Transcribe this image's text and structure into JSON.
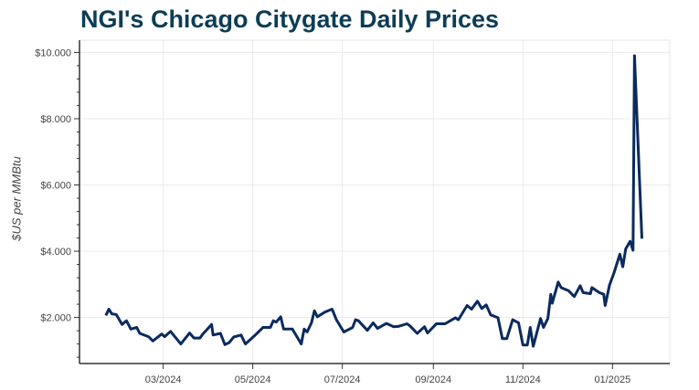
{
  "chart_data": {
    "type": "line",
    "title": "NGI's Chicago Citygate Daily Prices",
    "xlabel": "",
    "ylabel": "$US per MMBtu",
    "ylim": [
      0.61,
      10.37
    ],
    "xlim": [
      "2024-01-04",
      "2025-02-09"
    ],
    "grid": true,
    "line_color": "#0b2a5e",
    "title_color": "#0d3d56",
    "y_ticks": [
      {
        "value": 2,
        "label": "$2.000"
      },
      {
        "value": 4,
        "label": "$4.000"
      },
      {
        "value": 6,
        "label": "$6.000"
      },
      {
        "value": 8,
        "label": "$8.000"
      },
      {
        "value": 10,
        "label": "$10.000"
      }
    ],
    "x_ticks": [
      {
        "value": "2024-03-01",
        "label": "03/2024"
      },
      {
        "value": "2024-05-01",
        "label": "05/2024"
      },
      {
        "value": "2024-07-01",
        "label": "07/2024"
      },
      {
        "value": "2024-09-01",
        "label": "09/2024"
      },
      {
        "value": "2024-11-01",
        "label": "11/2024"
      },
      {
        "value": "2025-01-01",
        "label": "01/2025"
      }
    ],
    "series": [
      {
        "x": [
          "2024-01-22",
          "2024-01-24",
          "2024-01-26",
          "2024-01-29",
          "2024-02-02",
          "2024-02-05",
          "2024-02-08",
          "2024-02-12",
          "2024-02-14",
          "2024-02-20",
          "2024-02-23",
          "2024-02-29",
          "2024-03-02",
          "2024-03-06",
          "2024-03-13",
          "2024-03-19",
          "2024-03-22",
          "2024-03-26",
          "2024-03-28",
          "2024-04-03",
          "2024-04-04",
          "2024-04-09",
          "2024-04-12",
          "2024-04-15",
          "2024-04-18",
          "2024-04-23",
          "2024-04-26",
          "2024-05-02",
          "2024-05-08",
          "2024-05-13",
          "2024-05-15",
          "2024-05-17",
          "2024-05-20",
          "2024-05-22",
          "2024-05-28",
          "2024-06-03",
          "2024-06-05",
          "2024-06-07",
          "2024-06-10",
          "2024-06-12",
          "2024-06-14",
          "2024-06-19",
          "2024-06-24",
          "2024-06-27",
          "2024-07-02",
          "2024-07-08",
          "2024-07-10",
          "2024-07-12",
          "2024-07-18",
          "2024-07-22",
          "2024-07-25",
          "2024-07-31",
          "2024-08-05",
          "2024-08-08",
          "2024-08-14",
          "2024-08-16",
          "2024-08-21",
          "2024-08-26",
          "2024-08-28",
          "2024-09-03",
          "2024-09-09",
          "2024-09-16",
          "2024-09-18",
          "2024-09-24",
          "2024-09-27",
          "2024-10-01",
          "2024-10-04",
          "2024-10-07",
          "2024-10-10",
          "2024-10-15",
          "2024-10-18",
          "2024-10-21",
          "2024-10-25",
          "2024-10-29",
          "2024-11-01",
          "2024-11-04",
          "2024-11-06",
          "2024-11-08",
          "2024-11-13",
          "2024-11-15",
          "2024-11-18",
          "2024-11-20",
          "2024-11-21",
          "2024-11-25",
          "2024-11-27",
          "2024-12-02",
          "2024-12-06",
          "2024-12-10",
          "2024-12-12",
          "2024-12-17",
          "2024-12-18",
          "2024-12-23",
          "2024-12-26",
          "2024-12-27",
          "2024-12-30",
          "2025-01-02",
          "2025-01-06",
          "2025-01-08",
          "2025-01-10",
          "2025-01-13",
          "2025-01-15",
          "2025-01-16",
          "2025-01-21"
        ],
        "y": [
          2.06,
          2.25,
          2.11,
          2.09,
          1.79,
          1.9,
          1.65,
          1.7,
          1.52,
          1.42,
          1.29,
          1.5,
          1.42,
          1.58,
          1.2,
          1.53,
          1.38,
          1.38,
          1.5,
          1.79,
          1.47,
          1.52,
          1.18,
          1.24,
          1.41,
          1.47,
          1.2,
          1.44,
          1.7,
          1.7,
          1.9,
          1.86,
          2.02,
          1.65,
          1.65,
          1.2,
          1.65,
          1.56,
          1.84,
          2.2,
          2.02,
          2.16,
          2.25,
          1.93,
          1.56,
          1.7,
          1.93,
          1.9,
          1.61,
          1.84,
          1.67,
          1.82,
          1.72,
          1.73,
          1.81,
          1.75,
          1.52,
          1.72,
          1.53,
          1.81,
          1.81,
          1.99,
          1.93,
          2.36,
          2.25,
          2.49,
          2.27,
          2.38,
          2.08,
          1.99,
          1.36,
          1.36,
          1.93,
          1.84,
          1.17,
          1.17,
          1.7,
          1.13,
          1.97,
          1.7,
          1.97,
          2.7,
          2.43,
          3.07,
          2.9,
          2.81,
          2.63,
          2.96,
          2.75,
          2.72,
          2.9,
          2.75,
          2.7,
          2.36,
          2.98,
          3.34,
          3.91,
          3.53,
          4.07,
          4.3,
          4.03,
          9.9,
          4.38
        ]
      }
    ]
  }
}
